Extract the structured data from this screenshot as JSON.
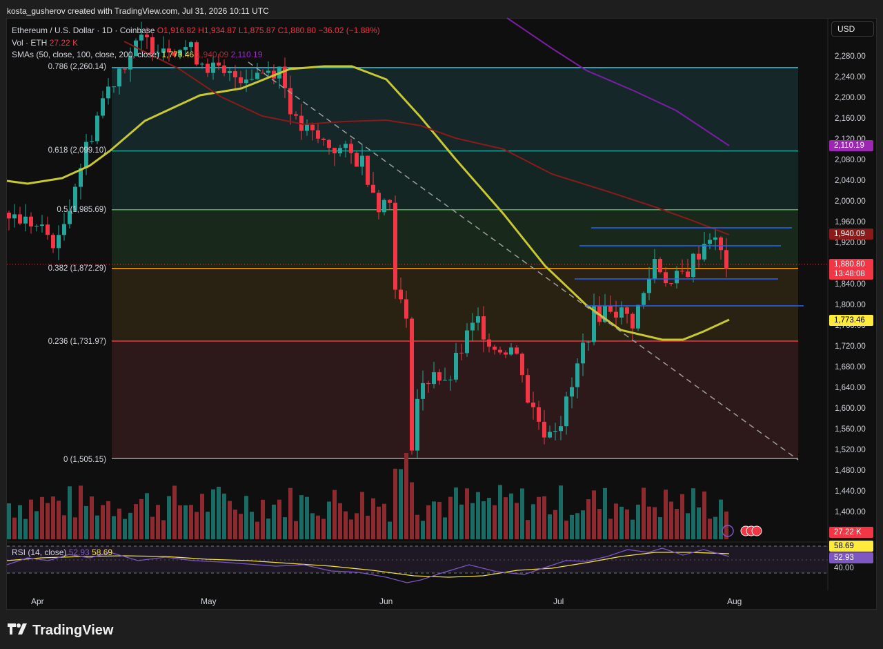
{
  "caption": "kosta_gusherov created with TradingView.com, Jul 31, 2026 10:11 UTC",
  "currency_button": "USD",
  "legend": {
    "symbol": "Ethereum / U.S. Dollar · 1D · Coinbase",
    "open": "O1,916.82",
    "high": "H1,934.87",
    "low": "L1,875.87",
    "close": "C1,880.80",
    "change": "−36.02 (−1.88%)",
    "volume_label": "Vol · ETH",
    "volume_value": "27.22 K",
    "sma_label": "SMAs (50, close, 100, close, 200, close)",
    "sma50": "1,773.46",
    "sma100": "1,940.09",
    "sma200": "2,110.19"
  },
  "rsi_legend": {
    "label": "RSI (14, close)",
    "rsi": "52.93",
    "ma": "58.69"
  },
  "fib_levels": [
    {
      "label": "0.786 (2,260.14)",
      "price": 2260.14,
      "color": "#26c6da"
    },
    {
      "label": "0.618 (2,099.10)",
      "price": 2099.1,
      "color": "#26a69a"
    },
    {
      "label": "0.5 (1,985.69)",
      "price": 1985.69,
      "color": "#4caf50"
    },
    {
      "label": "0.382 (1,872.29)",
      "price": 1872.29,
      "color": "#ff9800"
    },
    {
      "label": "0.236 (1,731.97)",
      "price": 1731.97,
      "color": "#f23645"
    },
    {
      "label": "0 (1,505.15)",
      "price": 1505.15,
      "color": "#9e9e9e"
    }
  ],
  "price_axis_labels": [
    "2,280.00",
    "2,240.00",
    "2,200.00",
    "2,160.00",
    "2,120.00",
    "2,080.00",
    "2,040.00",
    "2,000.00",
    "1,960.00",
    "1,920.00",
    "1,880.00",
    "1,840.00",
    "1,800.00",
    "1,760.00",
    "1,720.00",
    "1,680.00",
    "1,640.00",
    "1,600.00",
    "1,560.00",
    "1,520.00",
    "1,480.00",
    "1,440.00",
    "1,400.00"
  ],
  "price_tags": [
    {
      "text": "2,110.19",
      "bg": "#9c27b0",
      "fg": "#ffffff"
    },
    {
      "text": "1,940.09",
      "bg": "#8b1a1a",
      "fg": "#ffffff"
    },
    {
      "text": "1,880.80",
      "bg": "#f23645",
      "fg": "#ffffff"
    },
    {
      "text": "13:48:08",
      "bg": "#f23645",
      "fg": "#ffffff"
    },
    {
      "text": "1,773.46",
      "bg": "#ffeb3b",
      "fg": "#000000"
    },
    {
      "text": "27.22 K",
      "bg": "#f23645",
      "fg": "#ffffff"
    }
  ],
  "rsi_tags": [
    {
      "text": "58.69",
      "bg": "#ffeb3b",
      "fg": "#000000"
    },
    {
      "text": "52.93",
      "bg": "#7e57c2",
      "fg": "#ffffff"
    },
    {
      "text": "40.00",
      "bg": "",
      "fg": "#d1d4dc"
    }
  ],
  "time_labels": [
    "Apr",
    "May",
    "Jun",
    "Jul",
    "Aug"
  ],
  "logo_text": "TradingView",
  "chart_data": {
    "type": "candlestick",
    "symbol": "ETH/USD",
    "interval": "1D",
    "y_range": [
      1380,
      2320
    ],
    "last_price": 1880.8,
    "moving_averages": {
      "sma50": 1773.46,
      "sma100": 1940.09,
      "sma200": 2110.19
    },
    "volume_last": "27.22 K",
    "rsi": {
      "value": 52.93,
      "ma": 58.69
    }
  },
  "colors": {
    "up": "#26a69a",
    "down": "#f23645",
    "sma50": "#c8c832",
    "sma100": "#8b1a1a",
    "sma200": "#7b1fa2"
  }
}
